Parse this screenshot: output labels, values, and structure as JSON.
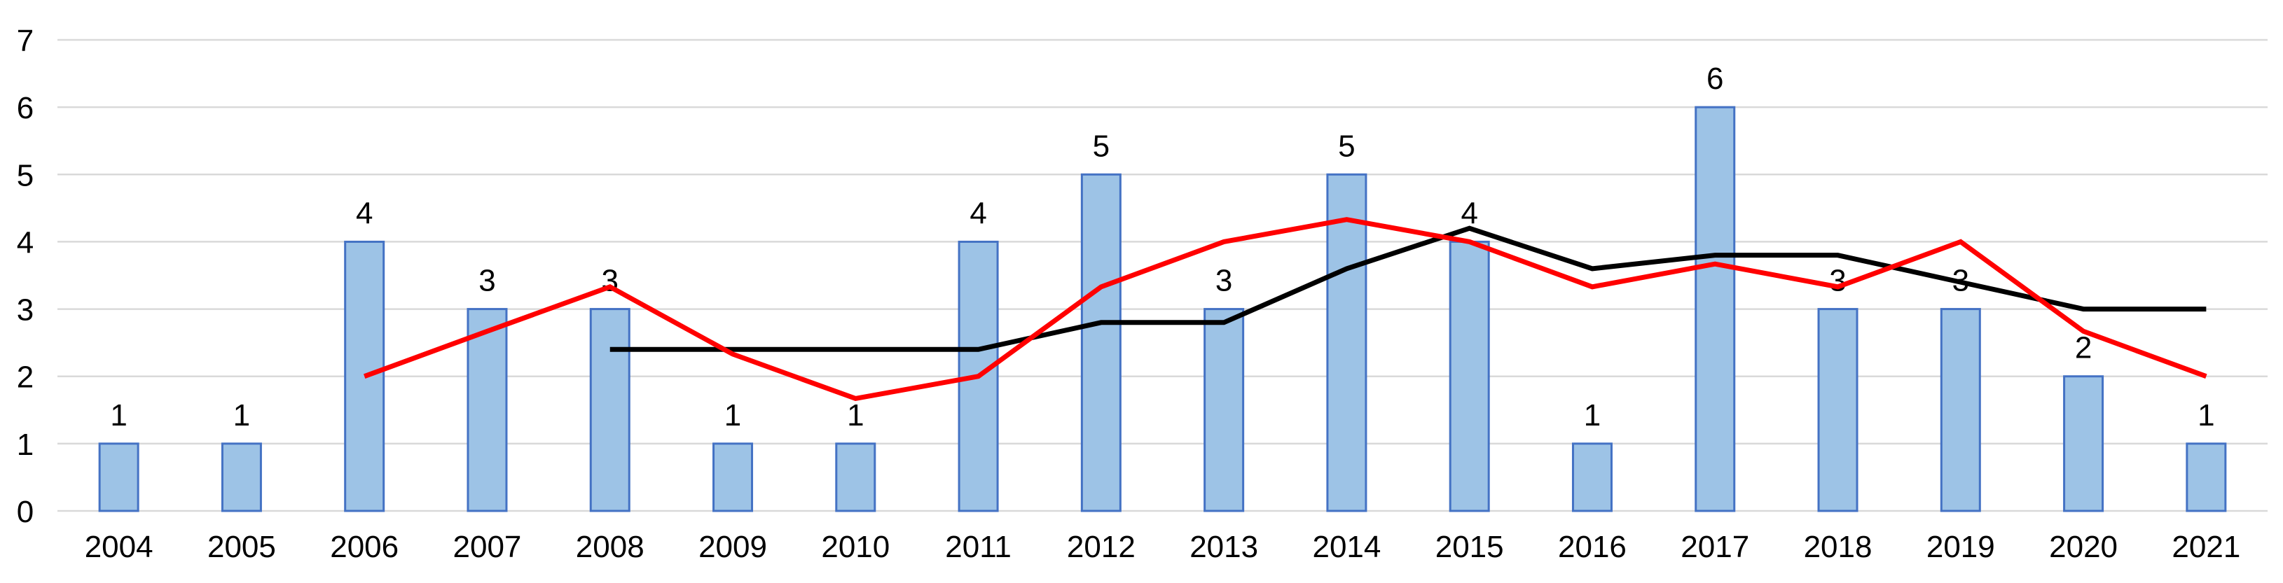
{
  "chart_data": {
    "type": "bar",
    "title": "",
    "categories": [
      "2004",
      "2005",
      "2006",
      "2007",
      "2008",
      "2009",
      "2010",
      "2011",
      "2012",
      "2013",
      "2014",
      "2015",
      "2016",
      "2017",
      "2018",
      "2019",
      "2020",
      "2021"
    ],
    "series": [
      {
        "name": "yearly-count-bars",
        "type": "bar",
        "values": [
          1,
          1,
          4,
          3,
          3,
          1,
          1,
          4,
          5,
          3,
          5,
          4,
          1,
          6,
          3,
          3,
          2,
          1
        ],
        "data_labels": [
          "1",
          "1",
          "4",
          "3",
          "3",
          "1",
          "1",
          "4",
          "5",
          "3",
          "5",
          "4",
          "1",
          "6",
          "3",
          "3",
          "2",
          "1"
        ],
        "fill": "#9DC3E6",
        "border": "#4472C4"
      },
      {
        "name": "red-trend-line",
        "type": "line",
        "color": "#FF0000",
        "x_start": "2006",
        "values": [
          2,
          2.67,
          3.33,
          2.33,
          1.67,
          2,
          3.33,
          4,
          4.33,
          4,
          3.33,
          3.67,
          3.33,
          4,
          2.67,
          2
        ]
      },
      {
        "name": "black-trend-line",
        "type": "line",
        "color": "#000000",
        "x_start": "2008",
        "values": [
          2.4,
          2.4,
          2.4,
          2.4,
          2.8,
          2.8,
          3.6,
          4.2,
          3.6,
          3.8,
          3.8,
          3.4,
          3,
          3
        ]
      }
    ],
    "y_axis": {
      "min": 0,
      "max": 7,
      "tick_labels": [
        "0",
        "1",
        "2",
        "3",
        "4",
        "5",
        "6",
        "7"
      ]
    },
    "x_axis": {
      "tick_labels": [
        "2004",
        "2005",
        "2006",
        "2007",
        "2008",
        "2009",
        "2010",
        "2011",
        "2012",
        "2013",
        "2014",
        "2015",
        "2016",
        "2017",
        "2018",
        "2019",
        "2020",
        "2021"
      ]
    },
    "legend": "none",
    "grid": "horizontal",
    "ylim": [
      0,
      7
    ],
    "colors": {
      "gridline": "#D9D9D9",
      "background": "#FFFFFF",
      "text": "#000000"
    }
  }
}
